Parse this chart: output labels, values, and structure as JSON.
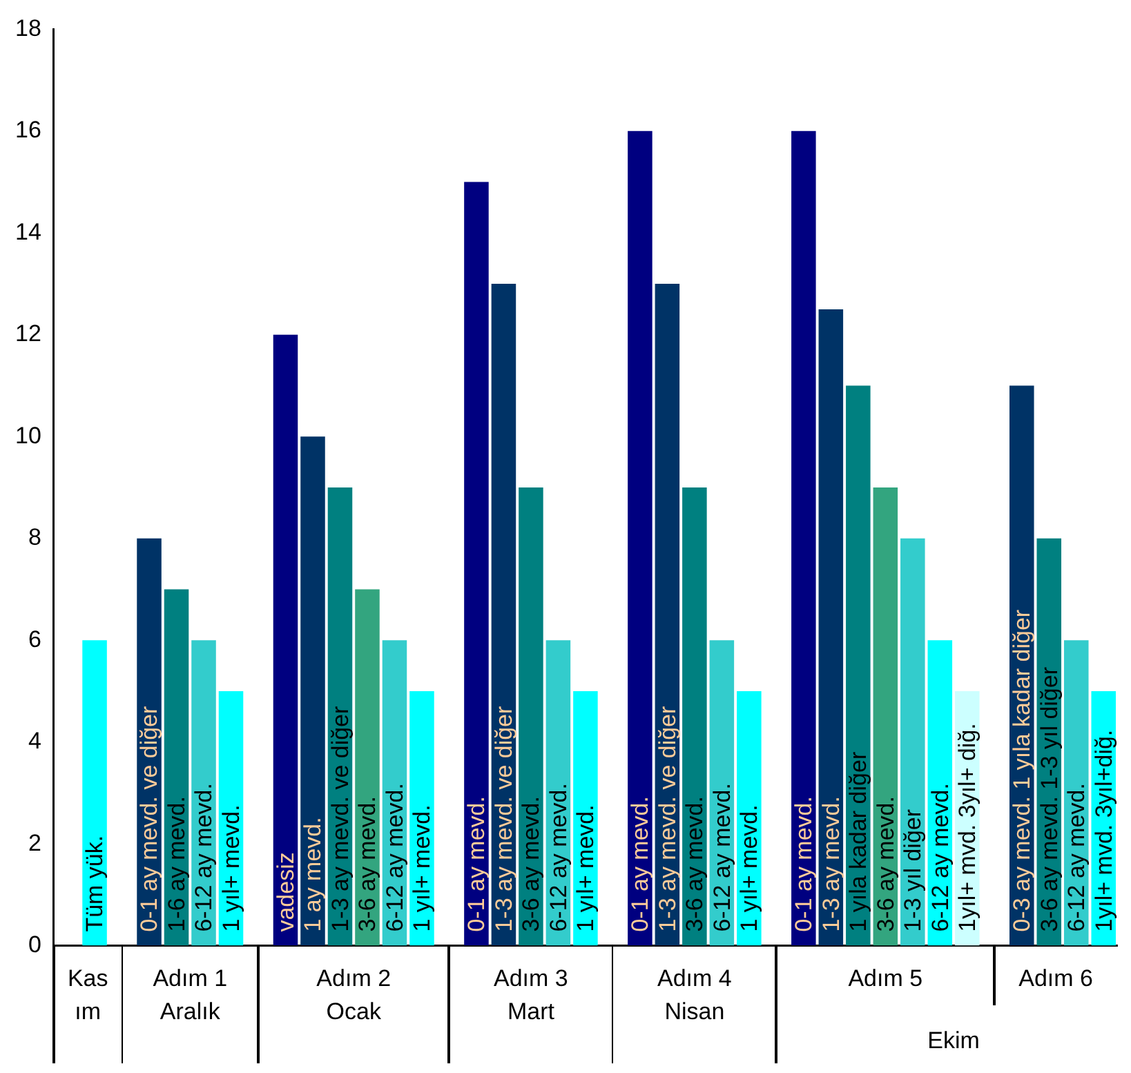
{
  "chart_data": {
    "type": "bar",
    "categories": [
      null,
      "Tüm yük.",
      null,
      "0-1 ay mevd. ve diğer",
      "1-6 ay mevd.",
      "6-12 ay mevd.",
      "1 yıl+ mevd.",
      null,
      "vadesiz",
      "1 ay mevd.",
      "1-3 ay mevd. ve diğer",
      "3-6 ay mevd.",
      "6-12 ay mevd.",
      "1 yıl+ mevd.",
      null,
      "0-1 ay mevd.",
      "1-3 ay mevd. ve diğer",
      "3-6 ay mevd.",
      "6-12 ay mevd.",
      "1 yıl+ mevd.",
      null,
      "0-1 ay mevd.",
      "1-3 ay mevd. ve diğer",
      "3-6 ay mevd.",
      "6-12 ay mevd.",
      "1 yıl+ mevd.",
      null,
      "0-1 ay mevd.",
      "1-3 ay mevd.",
      "1 yıla kadar diğer",
      "3-6 ay mevd.",
      "1-3 yıl diğer",
      "6-12 ay mevd.",
      "1yıl+ mvd. 3yıl+ diğ.",
      null,
      "0-3 ay mevd. 1 yıla kadar diğer",
      "3-6 ay mevd. 1-3 yıl diğer",
      "6-12 ay mevd.",
      "1yıl+ mvd. 3yıl+diğ."
    ],
    "values": [
      null,
      6,
      null,
      8,
      7,
      6,
      5,
      null,
      12,
      10,
      9,
      7,
      6,
      5,
      null,
      15,
      13,
      9,
      6,
      5,
      null,
      16,
      13,
      9,
      6,
      5,
      null,
      16,
      12.5,
      11,
      9,
      8,
      6,
      5,
      null,
      11,
      8,
      6,
      5
    ],
    "colors": [
      null,
      "#00ffff",
      null,
      "#003366",
      "#008080",
      "#33cccc",
      "#00ffff",
      null,
      "#000080",
      "#003366",
      "#008080",
      "#33a57f",
      "#33cccc",
      "#00ffff",
      null,
      "#000080",
      "#003366",
      "#008080",
      "#33cccc",
      "#00ffff",
      null,
      "#000080",
      "#003366",
      "#008080",
      "#33cccc",
      "#00ffff",
      null,
      "#000080",
      "#003366",
      "#008080",
      "#33a57f",
      "#33cccc",
      "#00ffff",
      "#ccffff",
      null,
      "#003366",
      "#008080",
      "#33cccc",
      "#00ffff"
    ],
    "ylim": [
      0,
      18
    ],
    "yticks": [
      0,
      2,
      4,
      6,
      8,
      10,
      12,
      14,
      16,
      18
    ],
    "grid": false,
    "legend": false,
    "annotations": [
      "Kas\nım",
      "Adım 1\nAralık",
      "Adım 2\nOcak",
      "Adım 3\nMart",
      "Adım 4\nNisan",
      "Adım 5",
      "Adım 6",
      "Ekim"
    ]
  }
}
